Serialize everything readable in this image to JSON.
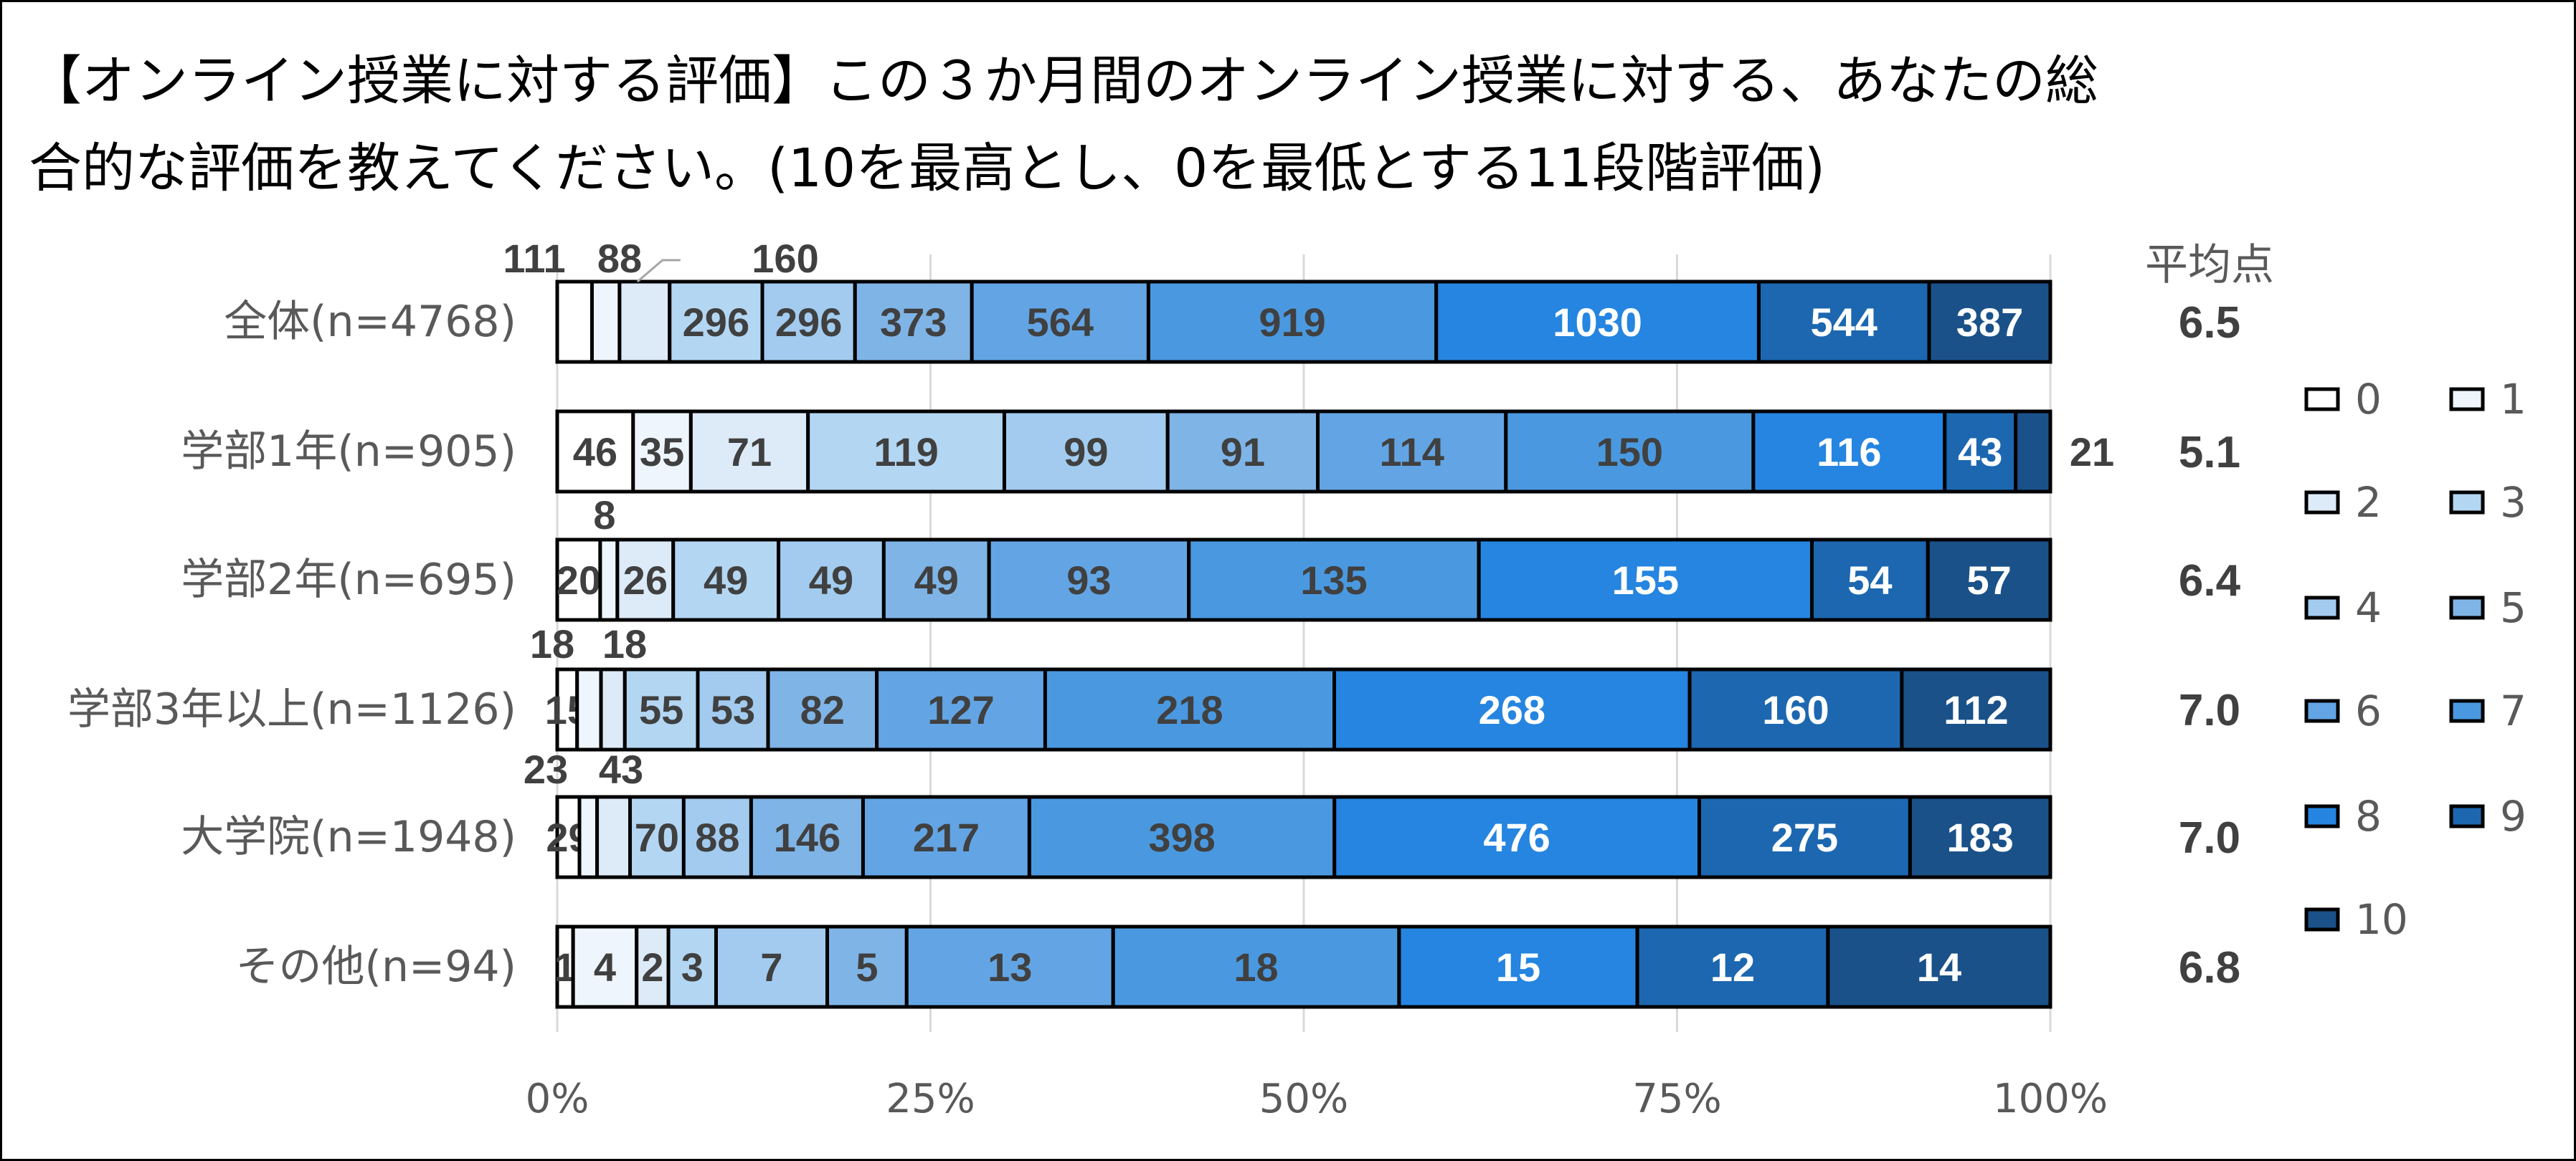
{
  "chart_data": {
    "type": "bar",
    "orientation": "horizontal",
    "stacked": "percent",
    "title_lines": [
      "【オンライン授業に対する評価】この３か月間のオンライン授業に対する、あなたの総",
      "合的な評価を教えてください。(10を最高とし、0を最低とする11段階評価)"
    ],
    "categories": [
      "全体(n=4768)",
      "学部1年(n=905)",
      "学部2年(n=695)",
      "学部3年以上(n=1126)",
      "大学院(n=1948)",
      "その他(n=94)"
    ],
    "series": [
      {
        "name": "0",
        "color": "#ffffff",
        "values": [
          111,
          46,
          20,
          15,
          29,
          1
        ]
      },
      {
        "name": "1",
        "color": "#eef5fc",
        "values": [
          88,
          35,
          8,
          18,
          23,
          4
        ]
      },
      {
        "name": "2",
        "color": "#ddeaf8",
        "values": [
          160,
          71,
          26,
          18,
          43,
          2
        ]
      },
      {
        "name": "3",
        "color": "#b3d6f3",
        "values": [
          296,
          119,
          49,
          55,
          70,
          3
        ]
      },
      {
        "name": "4",
        "color": "#a2cbef",
        "values": [
          296,
          99,
          49,
          53,
          88,
          7
        ]
      },
      {
        "name": "5",
        "color": "#7fb4e6",
        "values": [
          373,
          91,
          49,
          82,
          146,
          5
        ]
      },
      {
        "name": "6",
        "color": "#63a5e4",
        "values": [
          564,
          114,
          93,
          127,
          217,
          13
        ]
      },
      {
        "name": "7",
        "color": "#4a99e0",
        "values": [
          919,
          150,
          135,
          218,
          398,
          18
        ]
      },
      {
        "name": "8",
        "color": "#2585e0",
        "values": [
          1030,
          116,
          155,
          268,
          476,
          15
        ]
      },
      {
        "name": "9",
        "color": "#1c67b0",
        "values": [
          544,
          43,
          54,
          160,
          275,
          12
        ]
      },
      {
        "name": "10",
        "color": "#1a5189",
        "values": [
          387,
          21,
          57,
          112,
          183,
          14
        ]
      }
    ],
    "x_ticks": [
      "0%",
      "25%",
      "50%",
      "75%",
      "100%"
    ],
    "xlim": [
      0,
      100
    ],
    "grid": "vertical",
    "legend": "right",
    "average_header": "平均点",
    "averages": [
      "6.5",
      "5.1",
      "6.4",
      "7.0",
      "7.0",
      "6.8"
    ]
  }
}
